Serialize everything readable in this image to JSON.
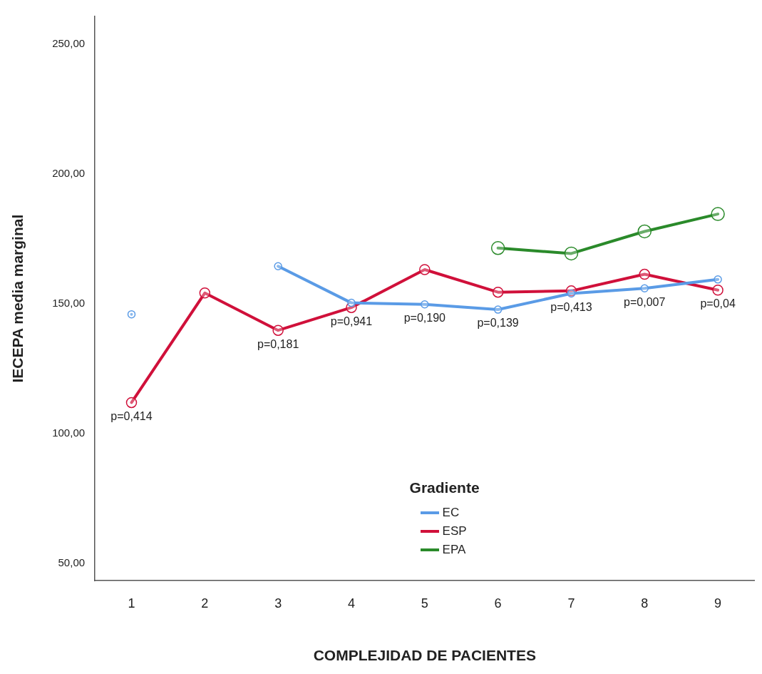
{
  "chart_data": {
    "type": "line",
    "xlabel": "COMPLEJIDAD DE PACIENTES",
    "ylabel": "IECEPA media marginal",
    "legend_title": "Gradiente",
    "legend": "bottom",
    "marker": "circle",
    "line_style": "solid",
    "grid": false,
    "categories": [
      "1",
      "2",
      "3",
      "4",
      "5",
      "6",
      "7",
      "8",
      "9"
    ],
    "ylim": [
      43.3,
      260.6
    ],
    "yticks": [
      {
        "value": 50,
        "label": "50,00"
      },
      {
        "value": 100,
        "label": "100,00"
      },
      {
        "value": 150,
        "label": "150,00"
      },
      {
        "value": 200,
        "label": "200,00"
      },
      {
        "value": 250,
        "label": "250,00"
      }
    ],
    "series": [
      {
        "name": "EC",
        "color": "#5a9be6",
        "values": [
          145.9,
          null,
          164.4,
          150.3,
          149.7,
          147.7,
          153.9,
          155.9,
          159.3
        ]
      },
      {
        "name": "ESP",
        "color": "#d0103a",
        "values": [
          111.9,
          154.1,
          139.7,
          148.5,
          163.1,
          154.4,
          154.9,
          161.3,
          155.2
        ]
      },
      {
        "name": "EPA",
        "color": "#2a8a2a",
        "values": [
          null,
          null,
          null,
          null,
          null,
          171.4,
          169.3,
          177.8,
          184.5
        ]
      }
    ],
    "annotations": [
      {
        "text": "p=0,414",
        "x": "1",
        "y": 111.9
      },
      {
        "text": "p=0,181",
        "x": "3",
        "y": 139.7
      },
      {
        "text": "p=0,941",
        "x": "4",
        "y": 148.5
      },
      {
        "text": "p=0,190",
        "x": "5",
        "y": 149.7
      },
      {
        "text": "p=0,139",
        "x": "6",
        "y": 147.7
      },
      {
        "text": "p=0,413",
        "x": "7",
        "y": 153.9
      },
      {
        "text": "p=0,007",
        "x": "8",
        "y": 155.9
      },
      {
        "text": "p=0,04",
        "x": "9",
        "y": 155.2
      }
    ]
  }
}
